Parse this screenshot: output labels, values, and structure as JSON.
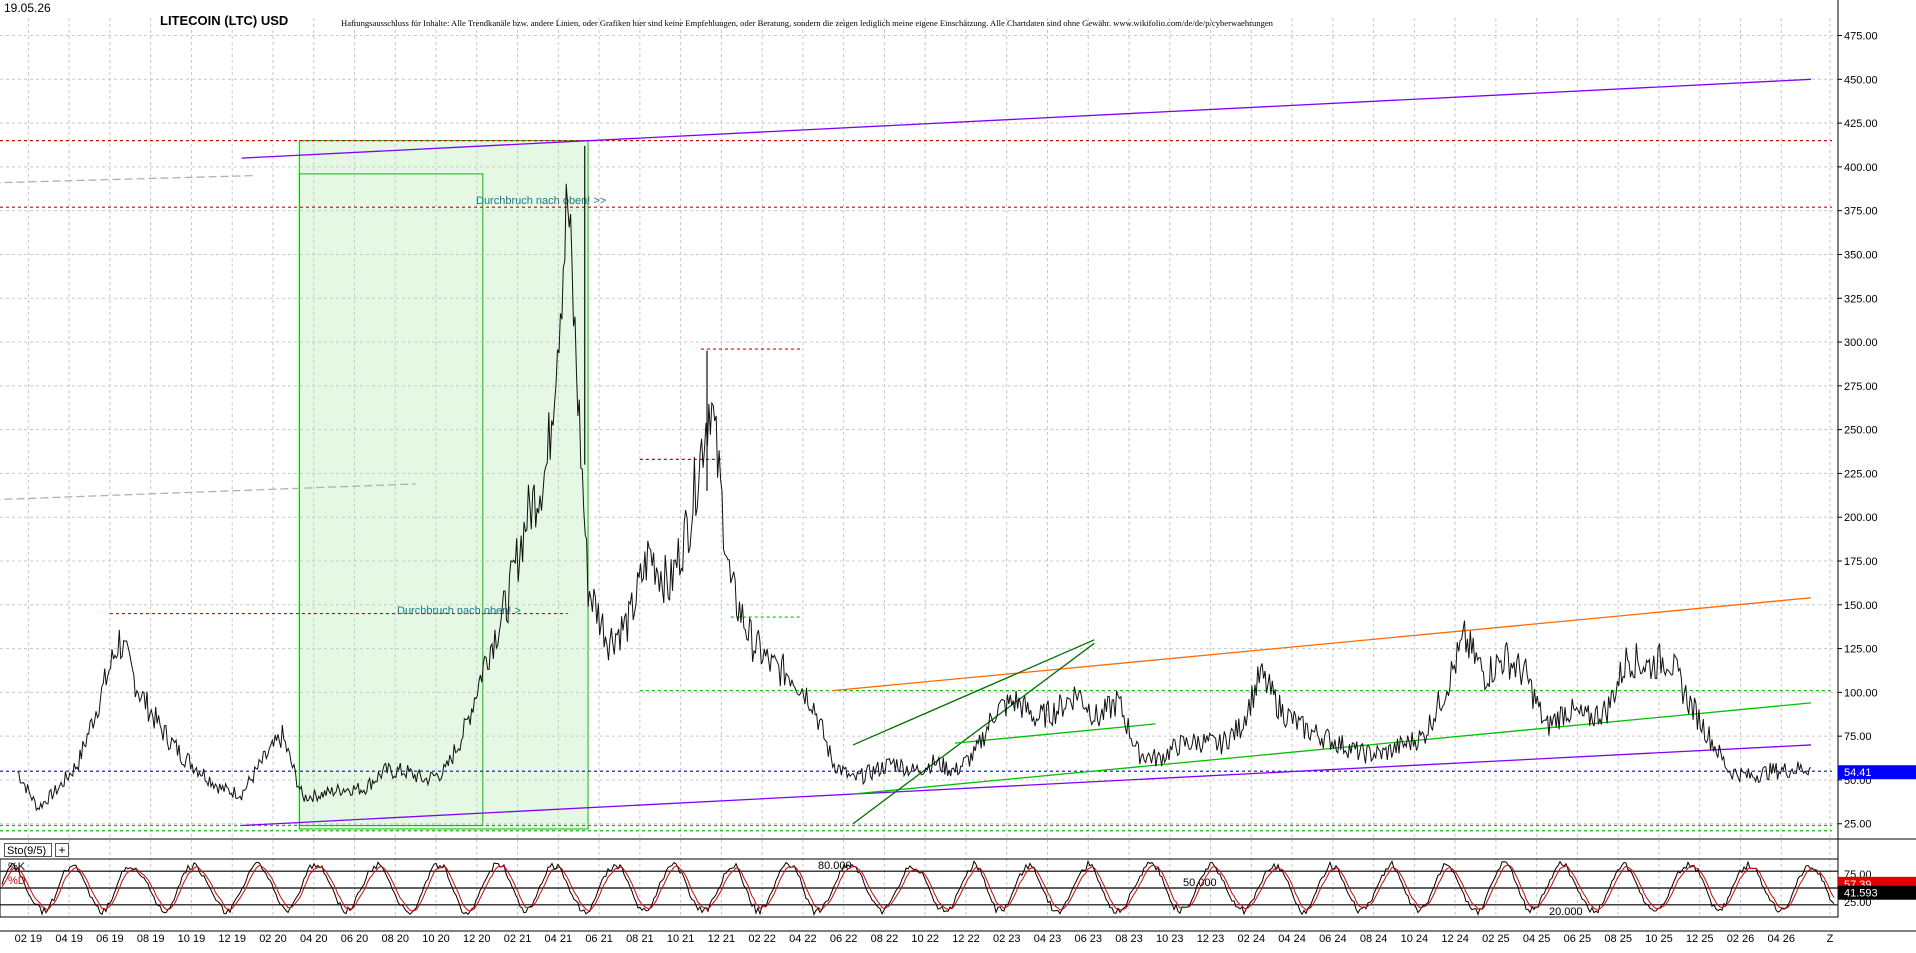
{
  "header": {
    "date": "19.05.26",
    "title": "LITECOIN (LTC) USD",
    "disclaimer": "Haftungsausschluss für Inhalte: Alle Trendkanäle bzw. andere Linien, oder Grafiken hier sind keine Empfehlungen, oder Beratung, sondern die zeigen lediglich meine eigene Einschätzung. Alle Chartdaten sind ohne Gewähr.  www.wikifolio.com/de/de/p/cyberwaehrungen"
  },
  "annotations": {
    "breakout_high": "Durchbruch nach oben! >>",
    "breakout_mid": "Durchbruch nach oben! >"
  },
  "price_badge": {
    "value": "54.41",
    "color": "#0000ff"
  },
  "stochastic": {
    "name": "Sto(9/5)",
    "plus": "+",
    "k_label": "%K",
    "d_label": "%D",
    "k_value": "57.39",
    "d_value": "41.593",
    "k_color": "#000000",
    "d_color": "#e00000",
    "level_high_label": "80.000",
    "level_mid_label": "50.000",
    "level_low_label": "20.000",
    "axis_labels": [
      "75.00",
      "50.00",
      "25.00"
    ],
    "levels": [
      80,
      50,
      20
    ]
  },
  "chart_data": {
    "type": "line",
    "title": "LITECOIN (LTC) USD",
    "xlabel": "",
    "ylabel": "",
    "ylim": [
      18,
      485
    ],
    "yticks": [
      "25.00",
      "50.00",
      "75.00",
      "100.00",
      "125.00",
      "150.00",
      "175.00",
      "200.00",
      "225.00",
      "250.00",
      "275.00",
      "300.00",
      "325.00",
      "350.00",
      "375.00",
      "400.00",
      "425.00",
      "450.00",
      "475.00"
    ],
    "x_tick_labels": [
      "02 19",
      "04 19",
      "06 19",
      "08 19",
      "10 19",
      "12 19",
      "02 20",
      "04 20",
      "06 20",
      "08 20",
      "10 20",
      "12 20",
      "02 21",
      "04 21",
      "06 21",
      "08 21",
      "10 21",
      "12 21",
      "02 22",
      "04 22",
      "06 22",
      "08 22",
      "10 22",
      "12 22",
      "02 23",
      "04 23",
      "06 23",
      "08 23",
      "10 23",
      "12 23",
      "02 24",
      "04 24",
      "06 24",
      "08 24",
      "10 24",
      "12 24",
      "02 25",
      "04 25",
      "06 25",
      "08 25",
      "10 25",
      "12 25",
      "02 26",
      "04 26",
      "Z"
    ],
    "series": [
      {
        "name": "",
        "x": [
          "2019-01",
          "2019-02",
          "2019-03",
          "2019-04",
          "2019-05",
          "2019-06",
          "2019-07",
          "2019-08",
          "2019-09",
          "2019-10",
          "2019-11",
          "2019-12",
          "2020-01",
          "2020-02",
          "2020-03",
          "2020-04",
          "2020-05",
          "2020-06",
          "2020-07",
          "2020-08",
          "2020-09",
          "2020-10",
          "2020-11",
          "2020-12",
          "2021-01",
          "2021-02",
          "2021-03",
          "2021-04",
          "2021-05",
          "2021-06",
          "2021-07",
          "2021-08",
          "2021-09",
          "2021-10",
          "2021-11",
          "2021-12",
          "2022-01",
          "2022-02",
          "2022-03",
          "2022-04",
          "2022-05",
          "2022-06",
          "2022-07",
          "2022-08",
          "2022-09",
          "2022-10",
          "2022-11",
          "2022-12",
          "2023-01",
          "2023-02",
          "2023-03",
          "2023-04",
          "2023-05",
          "2023-06",
          "2023-07",
          "2023-08",
          "2023-09",
          "2023-10",
          "2023-11",
          "2023-12",
          "2024-01",
          "2024-02",
          "2024-03",
          "2024-04",
          "2024-05",
          "2024-06",
          "2024-07",
          "2024-08",
          "2024-09",
          "2024-10",
          "2024-11",
          "2024-12",
          "2025-01",
          "2025-02",
          "2025-03",
          "2025-04",
          "2025-05",
          "2025-06",
          "2025-07",
          "2025-08",
          "2025-09",
          "2025-10",
          "2025-11",
          "2025-12",
          "2026-01",
          "2026-02",
          "2026-03",
          "2026-04",
          "2026-05"
        ],
        "values": [
          55,
          34,
          45,
          60,
          95,
          130,
          100,
          80,
          65,
          55,
          45,
          42,
          60,
          75,
          40,
          42,
          45,
          45,
          55,
          55,
          50,
          55,
          80,
          120,
          150,
          200,
          230,
          380,
          160,
          130,
          140,
          180,
          160,
          200,
          270,
          160,
          130,
          115,
          110,
          95,
          60,
          50,
          55,
          60,
          55,
          60,
          55,
          65,
          90,
          95,
          85,
          90,
          100,
          85,
          95,
          65,
          62,
          70,
          72,
          70,
          80,
          110,
          90,
          80,
          75,
          70,
          65,
          65,
          70,
          75,
          100,
          130,
          110,
          120,
          110,
          80,
          90,
          85,
          90,
          120,
          115,
          120,
          95,
          75,
          55,
          52,
          55,
          56,
          57
        ]
      }
    ],
    "horizontal_levels": [
      {
        "value": 415,
        "color": "#e00000",
        "style": "dotted"
      },
      {
        "value": 377,
        "color": "#e00000",
        "style": "dotted"
      },
      {
        "value": 296,
        "color": "#e00000",
        "style": "dotted"
      },
      {
        "value": 233,
        "color": "#e00000",
        "style": "dotted"
      },
      {
        "value": 145,
        "color": "#e00000",
        "style": "dotted"
      },
      {
        "value": 101,
        "color": "#00c000",
        "style": "dotted"
      },
      {
        "value": 143,
        "color": "#00c000",
        "style": "dotted"
      },
      {
        "value": 55,
        "color": "#0000ff",
        "style": "dotted"
      },
      {
        "value": 21,
        "color": "#00c000",
        "style": "dotted"
      },
      {
        "value": 24,
        "color": "#00c000",
        "style": "dotted"
      }
    ],
    "trend_lines": [
      {
        "from": [
          "2019-12-15",
          405
        ],
        "to": [
          "2026-05-15",
          450
        ],
        "color": "#8000ff"
      },
      {
        "from": [
          "2019-12-15",
          24
        ],
        "to": [
          "2026-05-15",
          70
        ],
        "color": "#8000ff"
      },
      {
        "from": [
          "2022-05-15",
          101
        ],
        "to": [
          "2026-05-15",
          154
        ],
        "color": "#ff6a00"
      },
      {
        "from": [
          "2022-06-15",
          42
        ],
        "to": [
          "2026-05-15",
          94
        ],
        "color": "#00c000"
      },
      {
        "from": [
          "2022-06-15",
          25
        ],
        "to": [
          "2023-06-10",
          128
        ],
        "color": "#007000"
      },
      {
        "from": [
          "2022-06-15",
          70
        ],
        "to": [
          "2023-06-10",
          130
        ],
        "color": "#007000"
      },
      {
        "from": [
          "2022-11-15",
          71
        ],
        "to": [
          "2023-09-10",
          82
        ],
        "color": "#00c000"
      },
      {
        "from": [
          "2017-06-01",
          385
        ],
        "to": [
          "2020-01-01",
          395
        ],
        "color": "#b0b0b0"
      },
      {
        "from": [
          "2017-06-01",
          202
        ],
        "to": [
          "2020-09-01",
          219
        ],
        "color": "#b0b0b0"
      }
    ],
    "zones": [
      {
        "from": "2020-03-10",
        "to": "2021-05-15",
        "low": 22,
        "high": 415,
        "color": "#00c000"
      },
      {
        "from": "2020-03-10",
        "to": "2020-12-10",
        "low": 24,
        "high": 396,
        "color": "#00c000"
      }
    ],
    "legend": "none",
    "grid": true
  }
}
